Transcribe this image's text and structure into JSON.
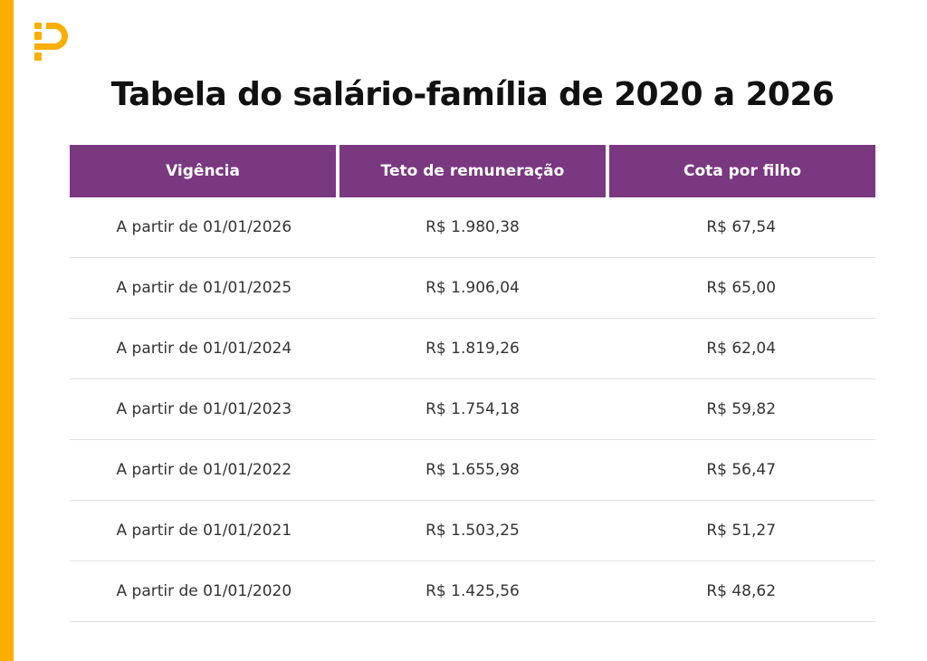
{
  "brand": {
    "logo_icon": "letter-p-logo-icon",
    "accent_color": "#F9AF00",
    "header_color": "#7A3880"
  },
  "title": "Tabela do salário-família de 2020 a 2026",
  "table": {
    "columns": [
      "Vigência",
      "Teto de remuneração",
      "Cota por filho"
    ],
    "rows": [
      [
        "A partir de 01/01/2026",
        "R$ 1.980,38",
        "R$ 67,54"
      ],
      [
        "A partir de 01/01/2025",
        "R$ 1.906,04",
        "R$ 65,00"
      ],
      [
        "A partir de 01/01/2024",
        "R$ 1.819,26",
        "R$ 62,04"
      ],
      [
        "A partir de 01/01/2023",
        "R$ 1.754,18",
        "R$ 59,82"
      ],
      [
        "A partir de 01/01/2022",
        "R$ 1.655,98",
        "R$ 56,47"
      ],
      [
        "A partir de 01/01/2021",
        "R$ 1.503,25",
        "R$ 51,27"
      ],
      [
        "A partir de 01/01/2020",
        "R$ 1.425,56",
        "R$ 48,62"
      ]
    ]
  }
}
